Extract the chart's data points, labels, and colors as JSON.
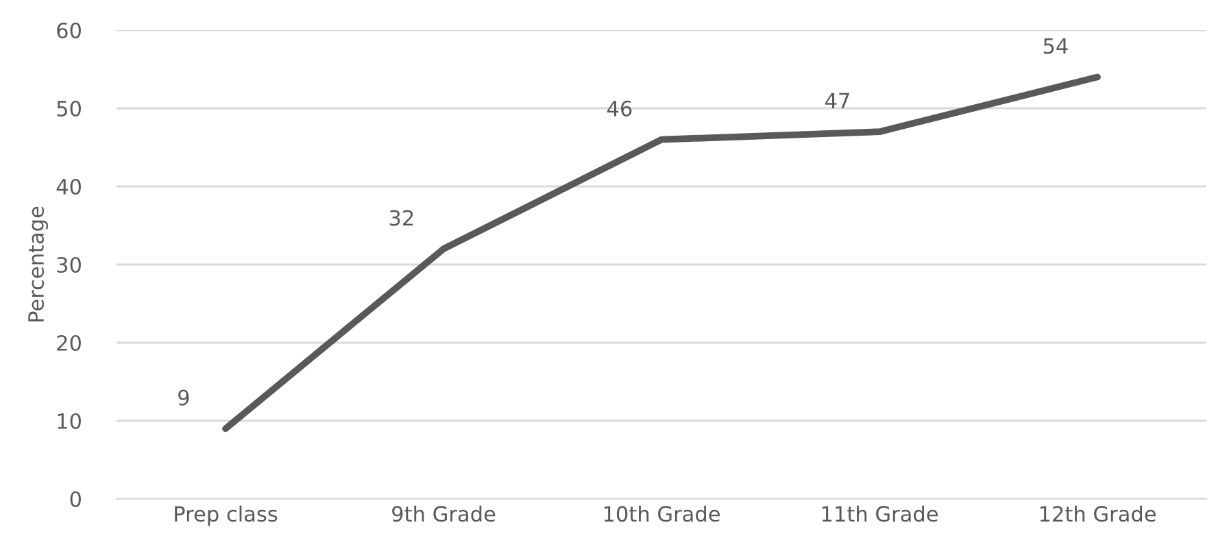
{
  "chart_data": {
    "type": "line",
    "ylabel": "Percentage",
    "categories": [
      "Prep class",
      "9th Grade",
      "10th Grade",
      "11th Grade",
      "12th Grade"
    ],
    "series": [
      {
        "color": "#595959",
        "values": [
          9,
          32,
          46,
          47,
          54
        ]
      }
    ],
    "ylim": [
      0,
      60
    ],
    "yticks": [
      0,
      10,
      20,
      30,
      40,
      50,
      60
    ],
    "grid": "y",
    "data_labels": true,
    "legend": false,
    "marker": "none",
    "line_style": "solid"
  }
}
